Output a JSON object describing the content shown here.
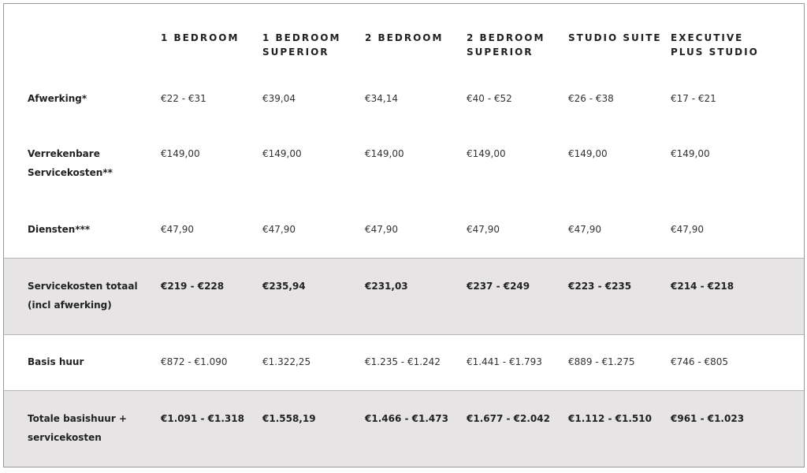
{
  "table": {
    "header": [
      "1 BEDROOM",
      "1 BEDROOM SUPERIOR",
      "2 BEDROOM",
      "2 BEDROOM SUPERIOR",
      "STUDIO SUITE",
      "EXECUTIVE PLUS STUDIO"
    ],
    "rows": [
      {
        "label": "Afwerking*",
        "highlight": false,
        "cells": [
          "€22 - €31",
          "€39,04",
          "€34,14",
          "€40 - €52",
          "€26 - €38",
          "€17 - €21"
        ]
      },
      {
        "label": "Verrekenbare Servicekosten**",
        "highlight": false,
        "cells": [
          "€149,00",
          "€149,00",
          "€149,00",
          "€149,00",
          "€149,00",
          "€149,00"
        ]
      },
      {
        "label": "Diensten***",
        "highlight": false,
        "cells": [
          "€47,90",
          "€47,90",
          "€47,90",
          "€47,90",
          "€47,90",
          "€47,90"
        ]
      },
      {
        "label": "Servicekosten totaal (incl afwerking)",
        "highlight": true,
        "cells": [
          "€219 - €228",
          "€235,94",
          "€231,03",
          "€237 - €249",
          "€223 - €235",
          "€214 - €218"
        ]
      },
      {
        "label": "Basis huur",
        "highlight": false,
        "cells": [
          "€872 - €1.090",
          "€1.322,25",
          "€1.235 - €1.242",
          "€1.441 - €1.793",
          "€889 - €1.275",
          "€746 - €805"
        ]
      },
      {
        "label": "Totale basishuur + servicekosten",
        "highlight": true,
        "cells": [
          "€1.091 - €1.318",
          "€1.558,19",
          "€1.466 - €1.473",
          "€1.677 - €2.042",
          "€1.112 - €1.510",
          "€961 - €1.023"
        ]
      }
    ]
  }
}
